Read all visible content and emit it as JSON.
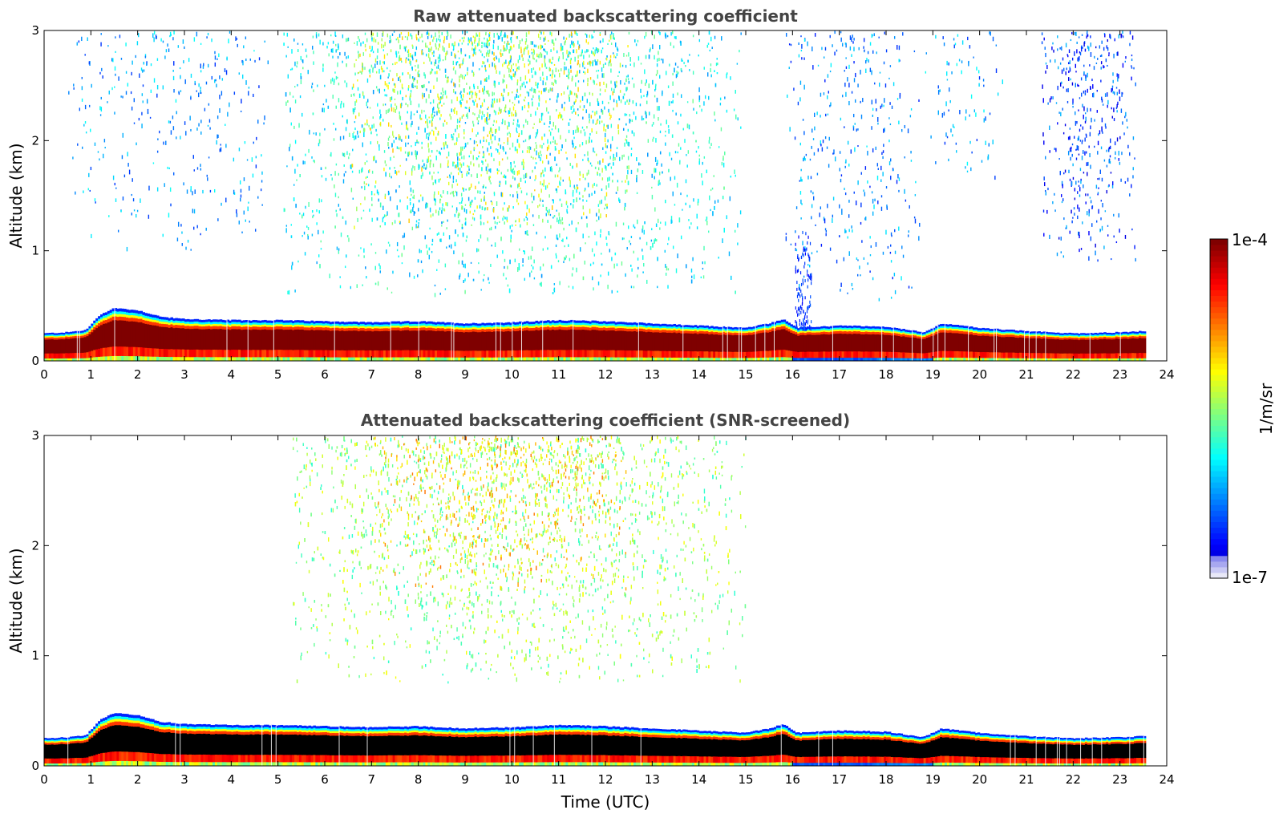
{
  "chart_data": [
    {
      "type": "heatmap",
      "title": "Raw attenuated backscattering coefficient",
      "ylabel": "Altitude (km)",
      "xlabel": "",
      "xlim": [
        0,
        24
      ],
      "ylim": [
        0,
        3
      ],
      "xticks": [
        "0",
        "1",
        "2",
        "3",
        "4",
        "5",
        "6",
        "7",
        "8",
        "9",
        "10",
        "11",
        "12",
        "13",
        "14",
        "15",
        "16",
        "17",
        "18",
        "19",
        "20",
        "21",
        "22",
        "23",
        "24"
      ],
      "yticks": [
        "0",
        "1",
        "2",
        "3"
      ],
      "data_end_time": 23.55,
      "boundary_layer": [
        {
          "t": 0,
          "top": 0.25
        },
        {
          "t": 0.5,
          "top": 0.26
        },
        {
          "t": 0.9,
          "top": 0.28
        },
        {
          "t": 1.2,
          "top": 0.42
        },
        {
          "t": 1.5,
          "top": 0.48
        },
        {
          "t": 2.0,
          "top": 0.46
        },
        {
          "t": 2.5,
          "top": 0.4
        },
        {
          "t": 3,
          "top": 0.38
        },
        {
          "t": 4,
          "top": 0.37
        },
        {
          "t": 5,
          "top": 0.37
        },
        {
          "t": 6,
          "top": 0.36
        },
        {
          "t": 7,
          "top": 0.35
        },
        {
          "t": 8,
          "top": 0.36
        },
        {
          "t": 9,
          "top": 0.34
        },
        {
          "t": 10,
          "top": 0.35
        },
        {
          "t": 11,
          "top": 0.37
        },
        {
          "t": 12,
          "top": 0.36
        },
        {
          "t": 13,
          "top": 0.34
        },
        {
          "t": 14,
          "top": 0.32
        },
        {
          "t": 15,
          "top": 0.3
        },
        {
          "t": 15.5,
          "top": 0.34
        },
        {
          "t": 15.8,
          "top": 0.38
        },
        {
          "t": 16.1,
          "top": 0.3
        },
        {
          "t": 17,
          "top": 0.32
        },
        {
          "t": 18,
          "top": 0.31
        },
        {
          "t": 18.8,
          "top": 0.26
        },
        {
          "t": 19.2,
          "top": 0.34
        },
        {
          "t": 20,
          "top": 0.3
        },
        {
          "t": 21,
          "top": 0.27
        },
        {
          "t": 22,
          "top": 0.25
        },
        {
          "t": 23,
          "top": 0.26
        },
        {
          "t": 23.55,
          "top": 0.27
        }
      ],
      "aerosol_regions": [
        {
          "t_start": 0.5,
          "t_end": 4.8,
          "alt_min": 1.0,
          "alt_max": 3.0,
          "level": 0.28,
          "density": 0.06
        },
        {
          "t_start": 5.0,
          "t_end": 14.9,
          "alt_min": 0.6,
          "alt_max": 3.0,
          "level": 0.38,
          "density": 0.16
        },
        {
          "t_start": 6.5,
          "t_end": 12.5,
          "alt_min": 1.2,
          "alt_max": 3.0,
          "level": 0.58,
          "density": 0.12
        },
        {
          "t_start": 15.8,
          "t_end": 18.8,
          "alt_min": 0.5,
          "alt_max": 3.0,
          "level": 0.26,
          "density": 0.07
        },
        {
          "t_start": 18.8,
          "t_end": 20.5,
          "alt_min": 1.6,
          "alt_max": 3.0,
          "level": 0.28,
          "density": 0.05
        },
        {
          "t_start": 21.3,
          "t_end": 23.35,
          "alt_min": 0.9,
          "alt_max": 3.0,
          "level": 0.2,
          "density": 0.14
        }
      ]
    },
    {
      "type": "heatmap",
      "title": "Attenuated backscattering coefficient (SNR-screened)",
      "ylabel": "Altitude (km)",
      "xlabel": "Time (UTC)",
      "xlim": [
        0,
        24
      ],
      "ylim": [
        0,
        3
      ],
      "xticks": [
        "0",
        "1",
        "2",
        "3",
        "4",
        "5",
        "6",
        "7",
        "8",
        "9",
        "10",
        "11",
        "12",
        "13",
        "14",
        "15",
        "16",
        "17",
        "18",
        "19",
        "20",
        "21",
        "22",
        "23",
        "24"
      ],
      "yticks": [
        "0",
        "1",
        "2",
        "3"
      ],
      "data_end_time": 23.55,
      "saturated_color": "#000000",
      "aerosol_regions": [
        {
          "t_start": 5.2,
          "t_end": 15.0,
          "alt_min": 0.75,
          "alt_max": 3.0,
          "level": 0.52,
          "density": 0.18
        },
        {
          "t_start": 7.0,
          "t_end": 12.5,
          "alt_min": 1.6,
          "alt_max": 3.0,
          "level": 0.66,
          "density": 0.12
        }
      ]
    }
  ],
  "colorbar": {
    "label": "1/m/sr",
    "max_label": "1e-4",
    "min_label": "1e-7",
    "colormap": "jet",
    "low_colors": [
      "#e8e8f8",
      "#c8c8f4",
      "#a8a8f0",
      "#8888ee"
    ]
  }
}
